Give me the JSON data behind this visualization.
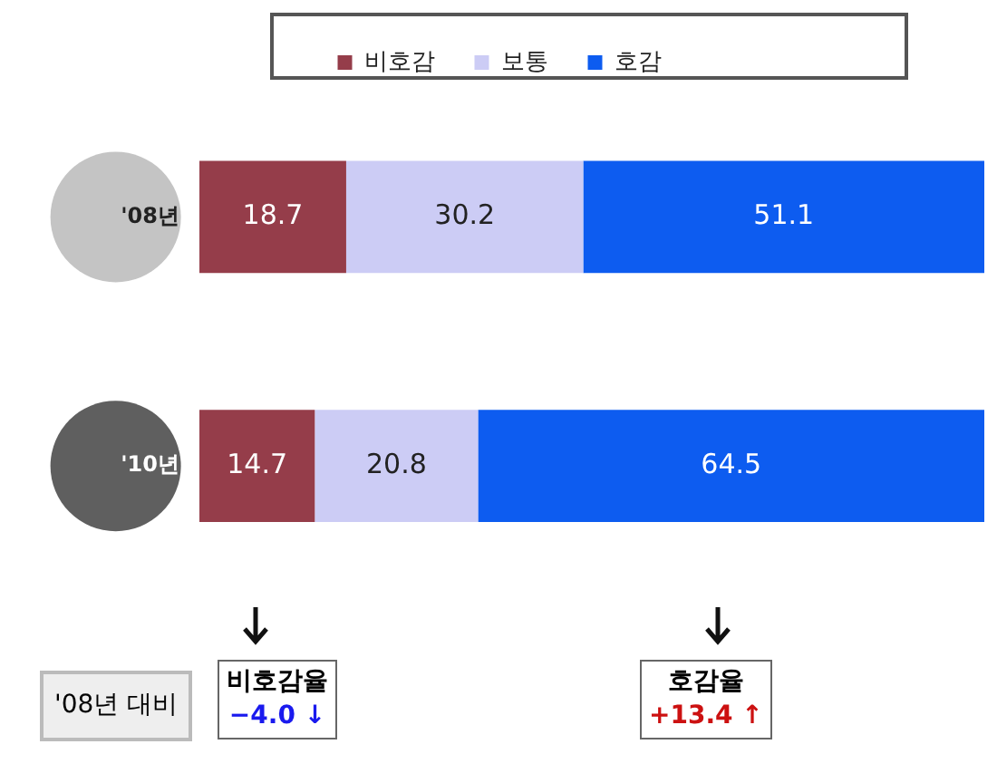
{
  "chart_data": {
    "type": "bar",
    "orientation": "horizontal",
    "stacked": true,
    "data_labels": true,
    "legend": "top",
    "grid": false,
    "categories": [
      "'08년",
      "'10년"
    ],
    "series": [
      {
        "name": "비호감",
        "color": "#953d4a",
        "values": [
          18.7,
          14.7
        ]
      },
      {
        "name": "보통",
        "color": "#ccccf5",
        "values": [
          30.2,
          20.8
        ]
      },
      {
        "name": "호감",
        "color": "#0d5cf0",
        "values": [
          51.1,
          64.5
        ]
      }
    ],
    "annotations": [
      "'08년 대비",
      "비호감율",
      "−4.0 ↓",
      "호감율",
      "+13.4 ↑"
    ]
  }
}
